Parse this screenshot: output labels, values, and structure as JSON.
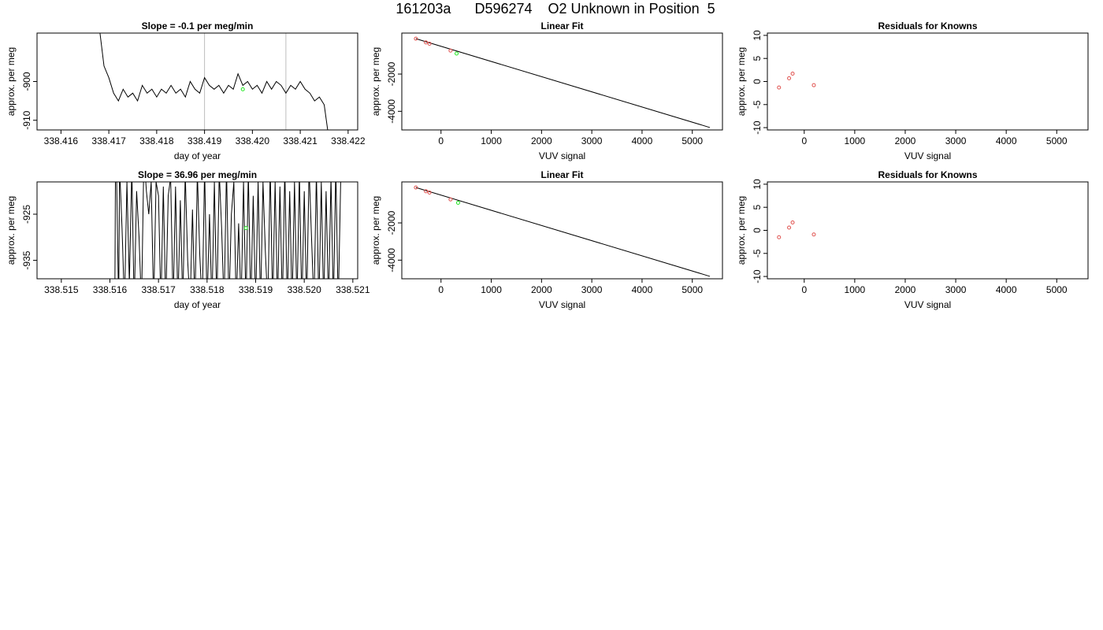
{
  "page_title": "161203a      D596274    O2 Unknown in Position  5",
  "chart_data": [
    {
      "id": "r1-time",
      "type": "line",
      "title": "Slope =  -0.1  per meg/min",
      "xlabel": "day of year",
      "ylabel": "approx. per meg",
      "xlim": [
        338.4155,
        338.4222
      ],
      "ylim": [
        -912.5,
        -887.5
      ],
      "xticks": [
        338.416,
        338.417,
        338.418,
        338.419,
        338.42,
        338.421,
        338.422
      ],
      "xtick_labels": [
        "338.416",
        "338.417",
        "338.418",
        "338.419",
        "338.420",
        "338.421",
        "338.422"
      ],
      "yticks": [
        -900,
        -910
      ],
      "ytick_labels": [
        "-900",
        "-910"
      ],
      "vlines": [
        338.419,
        338.4207
      ],
      "series": [
        {
          "x": [
            338.4168,
            338.4169,
            338.417,
            338.4171,
            338.4172,
            338.4173,
            338.4174,
            338.4175,
            338.4176,
            338.4177,
            338.4178,
            338.4179,
            338.418,
            338.4181,
            338.4182,
            338.4183,
            338.4184,
            338.4185,
            338.4186,
            338.4187,
            338.4188,
            338.4189,
            338.419,
            338.4191,
            338.4192,
            338.4193,
            338.4194,
            338.4195,
            338.4196,
            338.4197,
            338.4198,
            338.4199,
            338.42,
            338.4201,
            338.4202,
            338.4203,
            338.4204,
            338.4205,
            338.4206,
            338.4207,
            338.4208,
            338.4209,
            338.421,
            338.4211,
            338.4212,
            338.4213,
            338.4214,
            338.4215,
            338.4216
          ],
          "y": [
            -886,
            -896,
            -899,
            -903,
            -905,
            -902,
            -904,
            -903,
            -905,
            -901,
            -903,
            -902,
            -904,
            -902,
            -903,
            -901,
            -903,
            -902,
            -904,
            -900,
            -902,
            -903,
            -899,
            -901,
            -902,
            -901,
            -903,
            -901,
            -902,
            -898,
            -901,
            -900,
            -902,
            -901,
            -903,
            -900,
            -902,
            -900,
            -901,
            -903,
            -901,
            -902,
            -900,
            -902,
            -903,
            -905,
            -904,
            -906,
            -915
          ]
        }
      ],
      "unknown_point": {
        "x": 338.4198,
        "y": -902
      }
    },
    {
      "id": "r1-fit",
      "type": "scatter",
      "title": "Linear Fit",
      "xlabel": "VUV signal",
      "ylabel": "approx. per meg",
      "xlim": [
        -780,
        5600
      ],
      "ylim": [
        -5000,
        200
      ],
      "xticks": [
        0,
        1000,
        2000,
        3000,
        4000,
        5000
      ],
      "xtick_labels": [
        "0",
        "1000",
        "2000",
        "3000",
        "4000",
        "5000"
      ],
      "yticks": [
        -2000,
        -4000
      ],
      "ytick_labels": [
        "-2000",
        "-4000"
      ],
      "knowns": [
        {
          "x": -500,
          "y": -100
        },
        {
          "x": -300,
          "y": -300
        },
        {
          "x": -230,
          "y": -370
        },
        {
          "x": 190,
          "y": -740
        }
      ],
      "unknown": {
        "x": 310,
        "y": -900
      },
      "fit_line": [
        [
          -500,
          -100
        ],
        [
          5350,
          -4870
        ]
      ]
    },
    {
      "id": "r1-resid",
      "type": "scatter",
      "title": "Residuals for Knowns",
      "xlabel": "VUV signal",
      "ylabel": "approx. per meg",
      "xlim": [
        -730,
        5620
      ],
      "ylim": [
        -10.5,
        10.5
      ],
      "xticks": [
        0,
        1000,
        2000,
        3000,
        4000,
        5000
      ],
      "xtick_labels": [
        "0",
        "1000",
        "2000",
        "3000",
        "4000",
        "5000"
      ],
      "yticks": [
        10,
        5,
        0,
        -5,
        -10
      ],
      "ytick_labels": [
        "10",
        "5",
        "0",
        "-5",
        "-10"
      ],
      "knowns": [
        {
          "x": -500,
          "y": -1.3
        },
        {
          "x": -300,
          "y": 0.7
        },
        {
          "x": -230,
          "y": 1.7
        },
        {
          "x": 190,
          "y": -0.8
        }
      ]
    },
    {
      "id": "r2-time",
      "type": "line",
      "title": "Slope =  36.96  per meg/min",
      "xlabel": "day of year",
      "ylabel": "approx. per meg",
      "xlim": [
        338.5145,
        338.5211
      ],
      "ylim": [
        -939,
        -918
      ],
      "xticks": [
        338.515,
        338.516,
        338.517,
        338.518,
        338.519,
        338.52,
        338.521
      ],
      "xtick_labels": [
        "338.515",
        "338.516",
        "338.517",
        "338.518",
        "338.519",
        "338.520",
        "338.521"
      ],
      "yticks": [
        -925,
        -935
      ],
      "ytick_labels": [
        "-925",
        "-935"
      ],
      "vlines": [],
      "series": [
        {
          "x": [
            338.5161,
            338.51612,
            338.51618,
            338.5162,
            338.51625,
            338.5163,
            338.51635,
            338.5164,
            338.51645,
            338.5165,
            338.51655,
            338.5166,
            338.51665,
            338.5167,
            338.51675,
            338.5168,
            338.51685,
            338.5169,
            338.51695,
            338.517,
            338.51705,
            338.5171,
            338.51715,
            338.5172,
            338.51725,
            338.5173,
            338.51735,
            338.5174,
            338.51745,
            338.5175,
            338.51755,
            338.5176,
            338.51765,
            338.5177,
            338.51775,
            338.5178,
            338.51785,
            338.5179,
            338.51795,
            338.518,
            338.51805,
            338.5181,
            338.51815,
            338.5182,
            338.51825,
            338.5183,
            338.51835,
            338.5184,
            338.51845,
            338.5185,
            338.51855,
            338.5186,
            338.51865,
            338.5187,
            338.51875,
            338.5188,
            338.51885,
            338.5189,
            338.51895,
            338.519,
            338.51905,
            338.5191,
            338.51915,
            338.5192,
            338.51925,
            338.5193,
            338.51935,
            338.5194,
            338.51945,
            338.5195,
            338.51955,
            338.5196,
            338.51965,
            338.5197,
            338.51975,
            338.5198,
            338.51985,
            338.5199,
            338.51995,
            338.52,
            338.52005,
            338.5201,
            338.52015,
            338.5202,
            338.52025,
            338.5203,
            338.52035,
            338.5204,
            338.52045,
            338.5205,
            338.52055,
            338.5206,
            338.52065,
            338.5207,
            338.52075
          ],
          "y": [
            -945,
            -905,
            -945,
            -915,
            -928,
            -945,
            -918,
            -940,
            -915,
            -945,
            -920,
            -930,
            -945,
            -912,
            -920,
            -925,
            -918,
            -945,
            -918,
            -921,
            -945,
            -919,
            -945,
            -921,
            -917,
            -945,
            -919,
            -945,
            -922,
            -945,
            -916,
            -935,
            -945,
            -924,
            -945,
            -916,
            -934,
            -945,
            -915,
            -945,
            -925,
            -945,
            -918,
            -945,
            -916,
            -928,
            -945,
            -915,
            -945,
            -925,
            -918,
            -945,
            -927,
            -945,
            -918,
            -945,
            -916,
            -945,
            -921,
            -945,
            -918,
            -945,
            -918,
            -933,
            -945,
            -915,
            -945,
            -918,
            -945,
            -919,
            -945,
            -915,
            -945,
            -920,
            -945,
            -918,
            -945,
            -916,
            -945,
            -920,
            -945,
            -915,
            -930,
            -945,
            -916,
            -945,
            -918,
            -945,
            -920,
            -945,
            -917,
            -945,
            -915,
            -945,
            -918
          ]
        }
      ],
      "unknown_point": {
        "x": 338.5188,
        "y": -928
      }
    },
    {
      "id": "r2-fit",
      "type": "scatter",
      "title": "Linear Fit",
      "xlabel": "VUV signal",
      "ylabel": "approx. per meg",
      "xlim": [
        -780,
        5600
      ],
      "ylim": [
        -5000,
        200
      ],
      "xticks": [
        0,
        1000,
        2000,
        3000,
        4000,
        5000
      ],
      "xtick_labels": [
        "0",
        "1000",
        "2000",
        "3000",
        "4000",
        "5000"
      ],
      "yticks": [
        -2000,
        -4000
      ],
      "ytick_labels": [
        "-2000",
        "-4000"
      ],
      "knowns": [
        {
          "x": -500,
          "y": -100
        },
        {
          "x": -300,
          "y": -300
        },
        {
          "x": -230,
          "y": -370
        },
        {
          "x": 190,
          "y": -740
        }
      ],
      "unknown": {
        "x": 340,
        "y": -920
      },
      "fit_line": [
        [
          -500,
          -100
        ],
        [
          5350,
          -4870
        ]
      ]
    },
    {
      "id": "r2-resid",
      "type": "scatter",
      "title": "Residuals for Knowns",
      "xlabel": "VUV signal",
      "ylabel": "approx. per meg",
      "xlim": [
        -730,
        5620
      ],
      "ylim": [
        -10.5,
        10.5
      ],
      "xticks": [
        0,
        1000,
        2000,
        3000,
        4000,
        5000
      ],
      "xtick_labels": [
        "0",
        "1000",
        "2000",
        "3000",
        "4000",
        "5000"
      ],
      "yticks": [
        10,
        5,
        0,
        -5,
        -10
      ],
      "ytick_labels": [
        "10",
        "5",
        "0",
        "-5",
        "-10"
      ],
      "knowns": [
        {
          "x": -500,
          "y": -1.5
        },
        {
          "x": -300,
          "y": 0.6
        },
        {
          "x": -230,
          "y": 1.7
        },
        {
          "x": 190,
          "y": -0.9
        }
      ]
    }
  ],
  "colors": {
    "known_marker": "#e0524f",
    "unknown_marker": "#22e822",
    "line": "#000000",
    "vline": "#bdbdbd"
  }
}
